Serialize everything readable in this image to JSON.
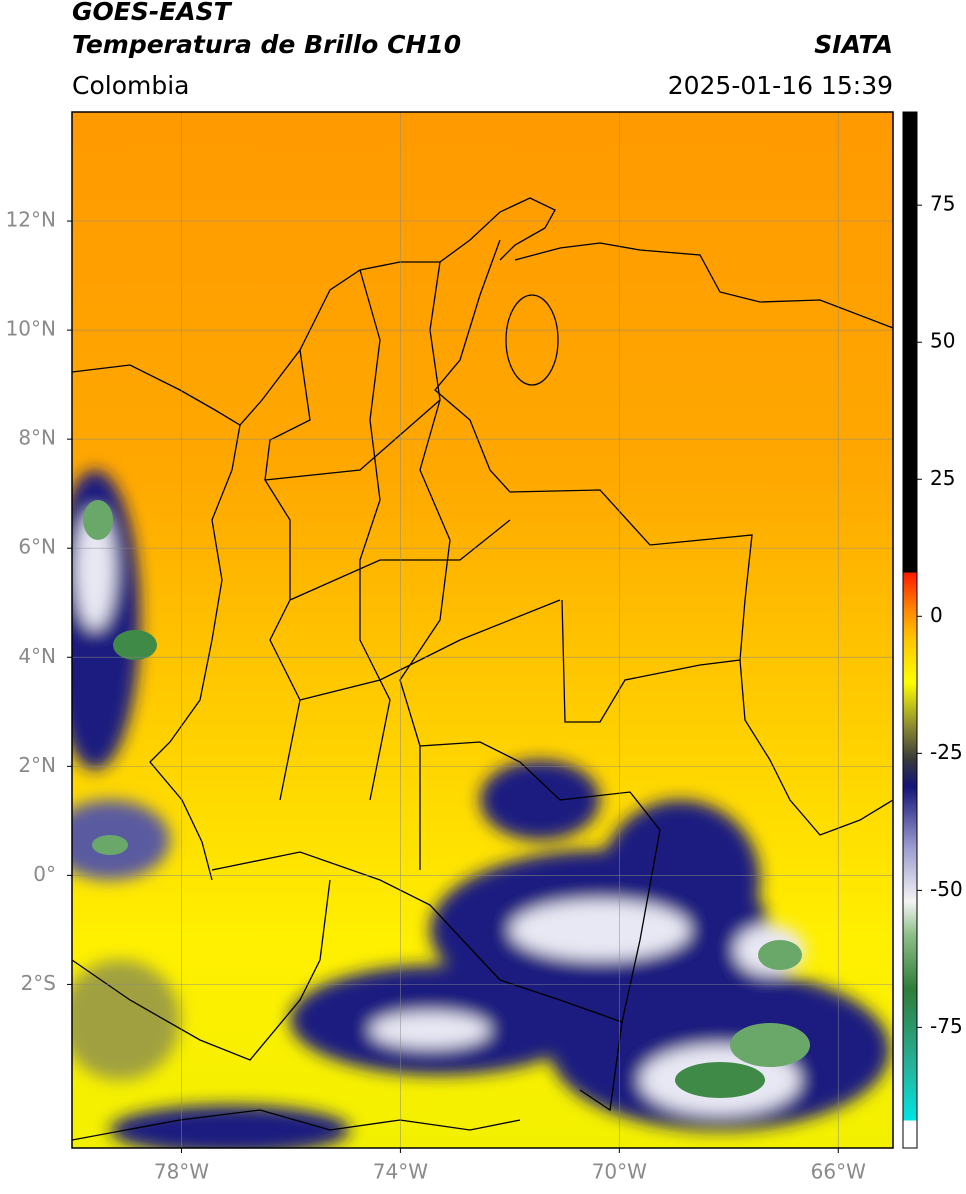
{
  "chart_data": {
    "type": "map",
    "title": "GOES-EAST",
    "subtitle": "Temperatura de Brillo CH10",
    "source": "SIATA",
    "region": "Colombia",
    "datetime": "2025-01-16 15:39",
    "xlim": [
      -80,
      -65
    ],
    "ylim": [
      -5,
      14
    ],
    "xticks": [
      {
        "value": -78,
        "label": "78°W"
      },
      {
        "value": -74,
        "label": "74°W"
      },
      {
        "value": -70,
        "label": "70°W"
      },
      {
        "value": -66,
        "label": "66°W"
      }
    ],
    "yticks": [
      {
        "value": 12,
        "label": "12°N"
      },
      {
        "value": 10,
        "label": "10°N"
      },
      {
        "value": 8,
        "label": "8°N"
      },
      {
        "value": 6,
        "label": "6°N"
      },
      {
        "value": 4,
        "label": "4°N"
      },
      {
        "value": 2,
        "label": "2°N"
      },
      {
        "value": 0,
        "label": "0°"
      },
      {
        "value": -2,
        "label": "2°S"
      }
    ],
    "grid": true,
    "colorbar": {
      "clim": [
        -97,
        92
      ],
      "ticks": [
        75,
        50,
        25,
        0,
        -25,
        -50,
        -75
      ],
      "stops": [
        {
          "value": -97,
          "color": "#ffffff"
        },
        {
          "value": -92,
          "color": "#ffffff"
        },
        {
          "value": -92,
          "color": "#00e5e5"
        },
        {
          "value": -82,
          "color": "#26b39a"
        },
        {
          "value": -68,
          "color": "#2e7d3a"
        },
        {
          "value": -58,
          "color": "#8fc08a"
        },
        {
          "value": -52,
          "color": "#f4f4f4"
        },
        {
          "value": -42,
          "color": "#9a9ad0"
        },
        {
          "value": -31,
          "color": "#141478"
        },
        {
          "value": -26,
          "color": "#3a3a3a"
        },
        {
          "value": -20,
          "color": "#8c8c30"
        },
        {
          "value": -12,
          "color": "#ffff00"
        },
        {
          "value": -4,
          "color": "#ffc400"
        },
        {
          "value": 1,
          "color": "#ff8a00"
        },
        {
          "value": 8,
          "color": "#ff1a00"
        },
        {
          "value": 8,
          "color": "#000000"
        },
        {
          "value": 92,
          "color": "#000000"
        }
      ]
    }
  }
}
